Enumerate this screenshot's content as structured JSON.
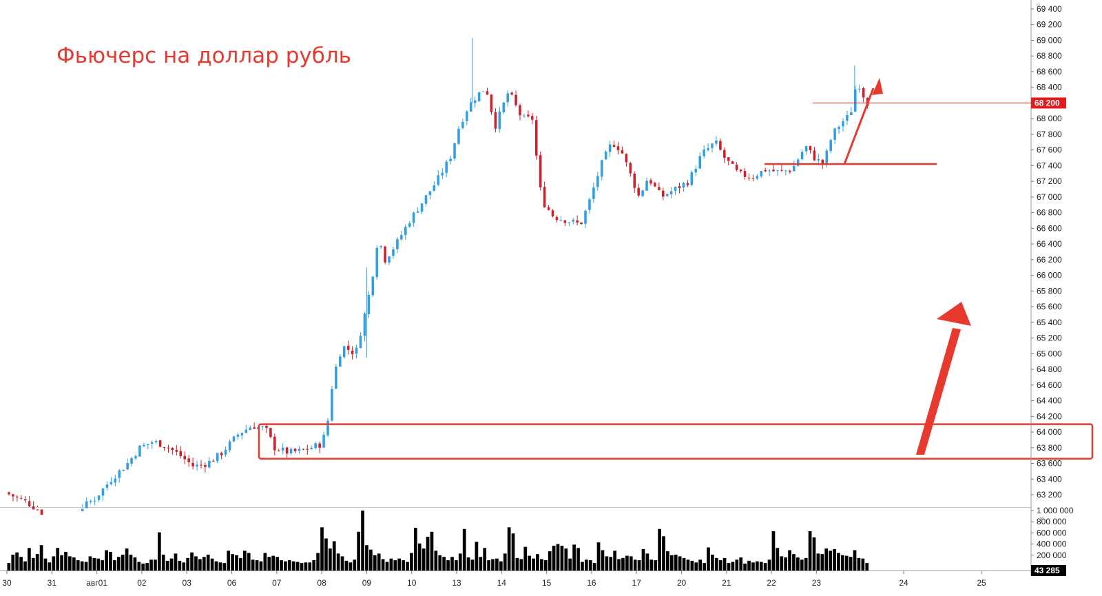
{
  "chart_data": {
    "type": "candlestick",
    "title": "Фьючерс на доллар рубль",
    "colors": {
      "up": "#2f9fe8",
      "down": "#d11f2a",
      "volume": "#000000",
      "annotation": "#e8392f",
      "price_badge": "#e31b1b",
      "volume_badge": "#000000"
    },
    "price_axis": {
      "ylim": [
        63050,
        69500
      ],
      "ticks": [
        "69 400",
        "69 200",
        "69 000",
        "68 800",
        "68 600",
        "68 400",
        "68 200",
        "68 000",
        "67 800",
        "67 600",
        "67 400",
        "67 200",
        "67 000",
        "66 800",
        "66 600",
        "66 400",
        "66 200",
        "66 000",
        "65 800",
        "65 600",
        "65 400",
        "65 200",
        "65 000",
        "64 800",
        "64 600",
        "64 400",
        "64 200",
        "64 000",
        "63 800",
        "63 600",
        "63 400",
        "63 200"
      ],
      "tick_values": [
        69400,
        69200,
        69000,
        68800,
        68600,
        68400,
        68200,
        68000,
        67800,
        67600,
        67400,
        67200,
        67000,
        66800,
        66600,
        66400,
        66200,
        66000,
        65800,
        65600,
        65400,
        65200,
        65000,
        64800,
        64600,
        64400,
        64200,
        64000,
        63800,
        63600,
        63400,
        63200
      ],
      "last_price": "68 200",
      "last_price_value": 68200
    },
    "volume_axis": {
      "ylim": [
        0,
        1050000
      ],
      "ticks": [
        "1 000 000",
        "800 000",
        "600 000",
        "400 000",
        "200 000"
      ],
      "tick_values": [
        1000000,
        800000,
        600000,
        400000,
        200000
      ],
      "last_volume": "43 285",
      "last_volume_value": 43285
    },
    "dates": [
      "30",
      "31",
      "авг01",
      "02",
      "03",
      "06",
      "07",
      "08",
      "09",
      "10",
      "13",
      "14",
      "15",
      "16",
      "17",
      "20",
      "21",
      "22",
      "23",
      "24",
      "25"
    ],
    "candle_sessions": 18.65,
    "volume_series": [
      60,
      210,
      250,
      170,
      90,
      330,
      150,
      220,
      380,
      140,
      70,
      180,
      330,
      200,
      260,
      180,
      160,
      110,
      90,
      80,
      180,
      150,
      140,
      110,
      290,
      260,
      110,
      170,
      210,
      320,
      210,
      160,
      80,
      50,
      60,
      120,
      120,
      610,
      210,
      100,
      140,
      230,
      100,
      70,
      150,
      250,
      180,
      130,
      170,
      210,
      140,
      90,
      70,
      60,
      280,
      220,
      200,
      150,
      280,
      240,
      120,
      110,
      90,
      240,
      170,
      190,
      170,
      110,
      90,
      110,
      90,
      80,
      60,
      70,
      70,
      110,
      240,
      700,
      500,
      320,
      450,
      230,
      180,
      100,
      70,
      120,
      620,
      1000,
      380,
      300,
      200,
      230,
      130,
      80,
      140,
      110,
      140,
      110,
      80,
      240,
      690,
      410,
      320,
      530,
      620,
      280,
      200,
      170,
      110,
      170,
      110,
      230,
      670,
      160,
      120,
      440,
      170,
      330,
      110,
      130,
      140,
      90,
      230,
      700,
      590,
      150,
      130,
      350,
      190,
      140,
      220,
      130,
      110,
      270,
      370,
      400,
      370,
      320,
      140,
      390,
      330,
      80,
      120,
      110,
      60,
      430,
      290,
      180,
      170,
      280,
      130,
      150,
      190,
      180,
      120,
      110,
      310,
      230,
      120,
      110,
      670,
      540,
      270,
      200,
      210,
      180,
      150,
      120,
      100,
      70,
      120,
      60,
      340,
      210,
      150,
      110,
      150,
      60,
      80,
      120,
      160,
      50,
      100,
      70,
      90,
      80,
      60,
      120,
      630,
      330,
      180,
      160,
      290,
      220,
      160,
      120,
      150,
      630,
      520,
      230,
      220,
      320,
      280,
      310,
      240,
      200,
      190,
      170,
      290,
      150,
      140,
      60
    ],
    "annotations": {
      "support_zone": {
        "label": "",
        "price_from": 63660,
        "price_to": 64100
      },
      "level_line": {
        "label": "",
        "price": 67420
      },
      "arrows": 2
    }
  }
}
